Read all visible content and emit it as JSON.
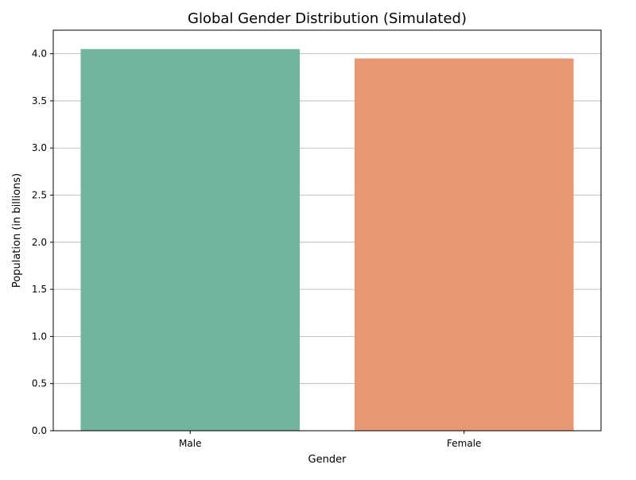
{
  "chart_data": {
    "type": "bar",
    "title": "Global Gender Distribution (Simulated)",
    "xlabel": "Gender",
    "ylabel": "Population (in billions)",
    "categories": [
      "Male",
      "Female"
    ],
    "values": [
      4.05,
      3.95
    ],
    "colors": [
      "#72b4a0",
      "#e89874"
    ],
    "ylim": [
      0,
      4.25
    ],
    "yticks": [
      0.0,
      0.5,
      1.0,
      1.5,
      2.0,
      2.5,
      3.0,
      3.5,
      4.0
    ],
    "ytick_labels": [
      "0.0",
      "0.5",
      "1.0",
      "1.5",
      "2.0",
      "2.5",
      "3.0",
      "3.5",
      "4.0"
    ],
    "grid": "y-axis on",
    "legend": "none"
  }
}
